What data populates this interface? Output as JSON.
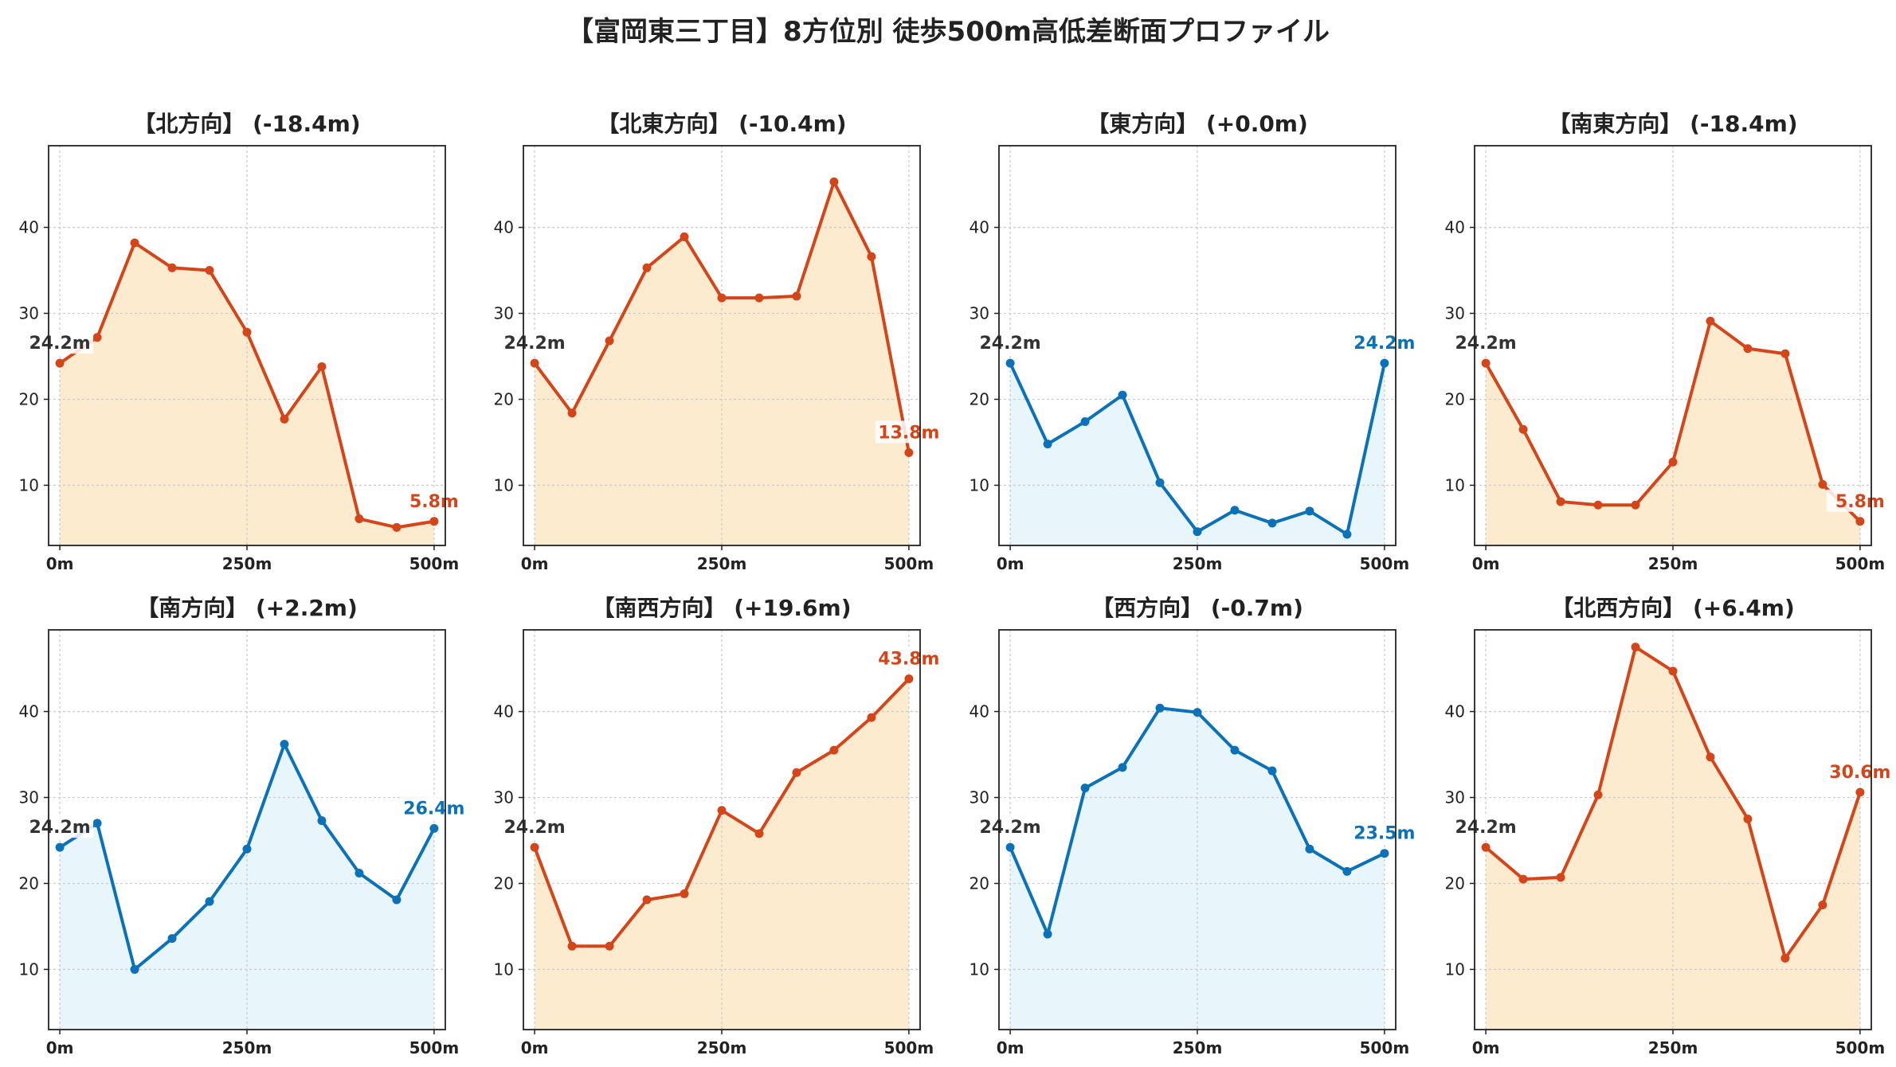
{
  "title": "【富岡東三丁目】8方位別 徒歩500m高低差断面プロファイル",
  "colors": {
    "up": "#d4451a",
    "down": "#0b72b9",
    "up_fill": "#fdebd0",
    "down_fill": "#e8f5fb",
    "start_label": "#333333",
    "grid": "#cccccc"
  },
  "chart_data": [
    {
      "type": "area",
      "title": "【北方向】 (-18.4m)",
      "x": [
        0,
        50,
        100,
        150,
        200,
        250,
        300,
        350,
        400,
        450,
        500
      ],
      "values": [
        24.2,
        27.2,
        38.2,
        35.3,
        35.0,
        27.8,
        17.7,
        23.8,
        6.1,
        5.1,
        5.8
      ],
      "color": "up",
      "start_label": "24.2m",
      "end_label": "5.8m",
      "xticks": [
        "0m",
        "250m",
        "500m"
      ],
      "yticks": [
        10,
        20,
        30,
        40
      ],
      "ylim": [
        3,
        49.5
      ],
      "xlim": [
        -15,
        515
      ],
      "grid": true
    },
    {
      "type": "area",
      "title": "【北東方向】 (-10.4m)",
      "x": [
        0,
        50,
        100,
        150,
        200,
        250,
        300,
        350,
        400,
        450,
        500
      ],
      "values": [
        24.2,
        18.4,
        26.8,
        35.3,
        38.9,
        31.8,
        31.8,
        32.0,
        45.3,
        36.6,
        13.8
      ],
      "color": "up",
      "start_label": "24.2m",
      "end_label": "13.8m",
      "xticks": [
        "0m",
        "250m",
        "500m"
      ],
      "yticks": [
        10,
        20,
        30,
        40
      ],
      "ylim": [
        3,
        49.5
      ],
      "xlim": [
        -15,
        515
      ],
      "grid": true
    },
    {
      "type": "area",
      "title": "【東方向】 (+0.0m)",
      "x": [
        0,
        50,
        100,
        150,
        200,
        250,
        300,
        350,
        400,
        450,
        500
      ],
      "values": [
        24.2,
        14.8,
        17.4,
        20.5,
        10.3,
        4.6,
        7.1,
        5.6,
        7.0,
        4.3,
        24.2
      ],
      "color": "down",
      "start_label": "24.2m",
      "end_label": "24.2m",
      "xticks": [
        "0m",
        "250m",
        "500m"
      ],
      "yticks": [
        10,
        20,
        30,
        40
      ],
      "ylim": [
        3,
        49.5
      ],
      "xlim": [
        -15,
        515
      ],
      "grid": true
    },
    {
      "type": "area",
      "title": "【南東方向】 (-18.4m)",
      "x": [
        0,
        50,
        100,
        150,
        200,
        250,
        300,
        350,
        400,
        450,
        500
      ],
      "values": [
        24.2,
        16.5,
        8.1,
        7.7,
        7.7,
        12.7,
        29.1,
        25.9,
        25.3,
        10.1,
        5.8
      ],
      "color": "up",
      "start_label": "24.2m",
      "end_label": "5.8m",
      "xticks": [
        "0m",
        "250m",
        "500m"
      ],
      "yticks": [
        10,
        20,
        30,
        40
      ],
      "ylim": [
        3,
        49.5
      ],
      "xlim": [
        -15,
        515
      ],
      "grid": true
    },
    {
      "type": "area",
      "title": "【南方向】 (+2.2m)",
      "x": [
        0,
        50,
        100,
        150,
        200,
        250,
        300,
        350,
        400,
        450,
        500
      ],
      "values": [
        24.2,
        27.0,
        10.0,
        13.6,
        17.9,
        24.0,
        36.2,
        27.3,
        21.2,
        18.1,
        26.4
      ],
      "color": "down",
      "start_label": "24.2m",
      "end_label": "26.4m",
      "xticks": [
        "0m",
        "250m",
        "500m"
      ],
      "yticks": [
        10,
        20,
        30,
        40
      ],
      "ylim": [
        3,
        49.5
      ],
      "xlim": [
        -15,
        515
      ],
      "grid": true
    },
    {
      "type": "area",
      "title": "【南西方向】 (+19.6m)",
      "x": [
        0,
        50,
        100,
        150,
        200,
        250,
        300,
        350,
        400,
        450,
        500
      ],
      "values": [
        24.2,
        12.7,
        12.7,
        18.1,
        18.8,
        28.5,
        25.8,
        32.9,
        35.5,
        39.3,
        43.8
      ],
      "color": "up",
      "start_label": "24.2m",
      "end_label": "43.8m",
      "xticks": [
        "0m",
        "250m",
        "500m"
      ],
      "yticks": [
        10,
        20,
        30,
        40
      ],
      "ylim": [
        3,
        49.5
      ],
      "xlim": [
        -15,
        515
      ],
      "grid": true
    },
    {
      "type": "area",
      "title": "【西方向】 (-0.7m)",
      "x": [
        0,
        50,
        100,
        150,
        200,
        250,
        300,
        350,
        400,
        450,
        500
      ],
      "values": [
        24.2,
        14.1,
        31.1,
        33.5,
        40.4,
        39.9,
        35.5,
        33.1,
        24.0,
        21.4,
        23.5
      ],
      "color": "down",
      "start_label": "24.2m",
      "end_label": "23.5m",
      "xticks": [
        "0m",
        "250m",
        "500m"
      ],
      "yticks": [
        10,
        20,
        30,
        40
      ],
      "ylim": [
        3,
        49.5
      ],
      "xlim": [
        -15,
        515
      ],
      "grid": true
    },
    {
      "type": "area",
      "title": "【北西方向】 (+6.4m)",
      "x": [
        0,
        50,
        100,
        150,
        200,
        250,
        300,
        350,
        400,
        450,
        500
      ],
      "values": [
        24.2,
        20.5,
        20.7,
        30.3,
        47.5,
        44.7,
        34.7,
        27.5,
        11.3,
        17.5,
        30.6
      ],
      "color": "up",
      "start_label": "24.2m",
      "end_label": "30.6m",
      "xticks": [
        "0m",
        "250m",
        "500m"
      ],
      "yticks": [
        10,
        20,
        30,
        40
      ],
      "ylim": [
        3,
        49.5
      ],
      "xlim": [
        -15,
        515
      ],
      "grid": true
    }
  ]
}
